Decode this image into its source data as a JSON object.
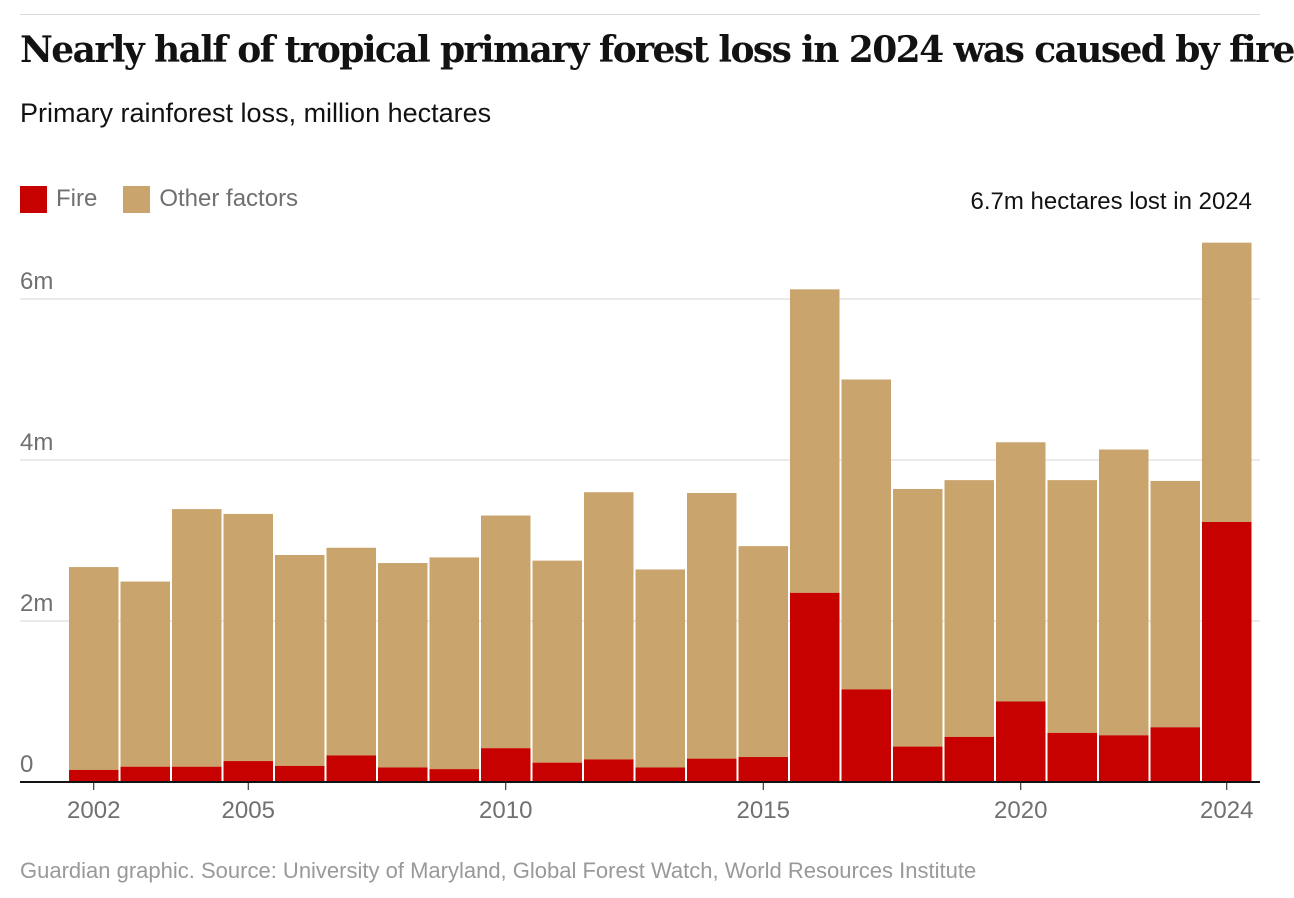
{
  "header": {
    "title": "Nearly half of tropical primary forest loss in 2024 was caused by fire",
    "subtitle": "Primary rainforest loss, million hectares"
  },
  "legend": {
    "items": [
      {
        "label": "Fire",
        "color": "#c70000"
      },
      {
        "label": "Other factors",
        "color": "#c9a46d"
      }
    ]
  },
  "annotation": "6.7m hectares lost in 2024",
  "source": "Guardian graphic. Source: University of Maryland, Global Forest Watch, World Resources Institute",
  "chart_data": {
    "type": "bar",
    "stacked": true,
    "categories": [
      "2002",
      "2003",
      "2004",
      "2005",
      "2006",
      "2007",
      "2008",
      "2009",
      "2010",
      "2011",
      "2012",
      "2013",
      "2014",
      "2015",
      "2016",
      "2017",
      "2018",
      "2019",
      "2020",
      "2021",
      "2022",
      "2023",
      "2024"
    ],
    "series": [
      {
        "name": "Fire",
        "color": "#c70000",
        "values": [
          0.15,
          0.19,
          0.19,
          0.26,
          0.2,
          0.33,
          0.18,
          0.16,
          0.42,
          0.24,
          0.28,
          0.18,
          0.29,
          0.31,
          2.35,
          1.15,
          0.44,
          0.56,
          1.0,
          0.61,
          0.58,
          0.68,
          3.23
        ]
      },
      {
        "name": "Other factors",
        "color": "#c9a46d",
        "values": [
          2.52,
          2.3,
          3.2,
          3.07,
          2.62,
          2.58,
          2.54,
          2.63,
          2.89,
          2.51,
          3.32,
          2.46,
          3.3,
          2.62,
          3.77,
          3.85,
          3.2,
          3.19,
          3.22,
          3.14,
          3.55,
          3.06,
          3.47
        ]
      }
    ],
    "y_ticks": [
      {
        "value": 0,
        "label": "0"
      },
      {
        "value": 2,
        "label": "2m"
      },
      {
        "value": 4,
        "label": "4m"
      },
      {
        "value": 6,
        "label": "6m"
      }
    ],
    "x_tick_labels": [
      "2002",
      "2005",
      "2010",
      "2015",
      "2020",
      "2024"
    ],
    "ylim": [
      0,
      7
    ],
    "grid": true,
    "legend_position": "top-left"
  }
}
